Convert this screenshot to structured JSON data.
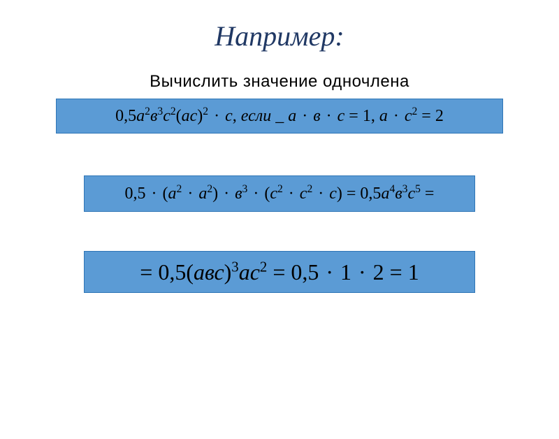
{
  "title": "Например:",
  "subtitle": "Вычислить значение одночлена",
  "colors": {
    "box_background": "#5b9bd5",
    "box_border": "#2e75b6",
    "title_color": "#203864",
    "text_color": "#000000",
    "page_background": "#ffffff"
  },
  "formula1": {
    "html": "0,5<i>а</i><sup>2</sup><i>в</i><sup>3</sup><i>с</i><sup>2</sup>(<i>ас</i>)<sup>2</sup> <span class='dot'>·</span> <i>с</i>, <i>если</i> _ <i>а</i> <span class='dot'>·</span> <i>в</i> <span class='dot'>·</span> <i>с</i> = 1, <i>а</i> <span class='dot'>·</span> <i>с</i><sup>2</sup> = 2"
  },
  "formula2": {
    "html": "0,5 <span class='dot'>·</span> (<i>а</i><sup>2</sup> <span class='dot'>·</span> <i>а</i><sup>2</sup>) <span class='dot'>·</span> <i>в</i><sup>3</sup> <span class='dot'>·</span> (<i>с</i><sup>2</sup> <span class='dot'>·</span> <i>с</i><sup>2</sup> <span class='dot'>·</span> <i>с</i>) = 0,5<i>а</i><sup>4</sup><i>в</i><sup>3</sup><i>с</i><sup>5</sup> ="
  },
  "formula3": {
    "html": "= 0,5(<i>авс</i>)<sup>3</sup><i>ас</i><sup>2</sup> = 0,5 <span class='dot'>·</span> 1 <span class='dot'>·</span> 2 = 1"
  }
}
